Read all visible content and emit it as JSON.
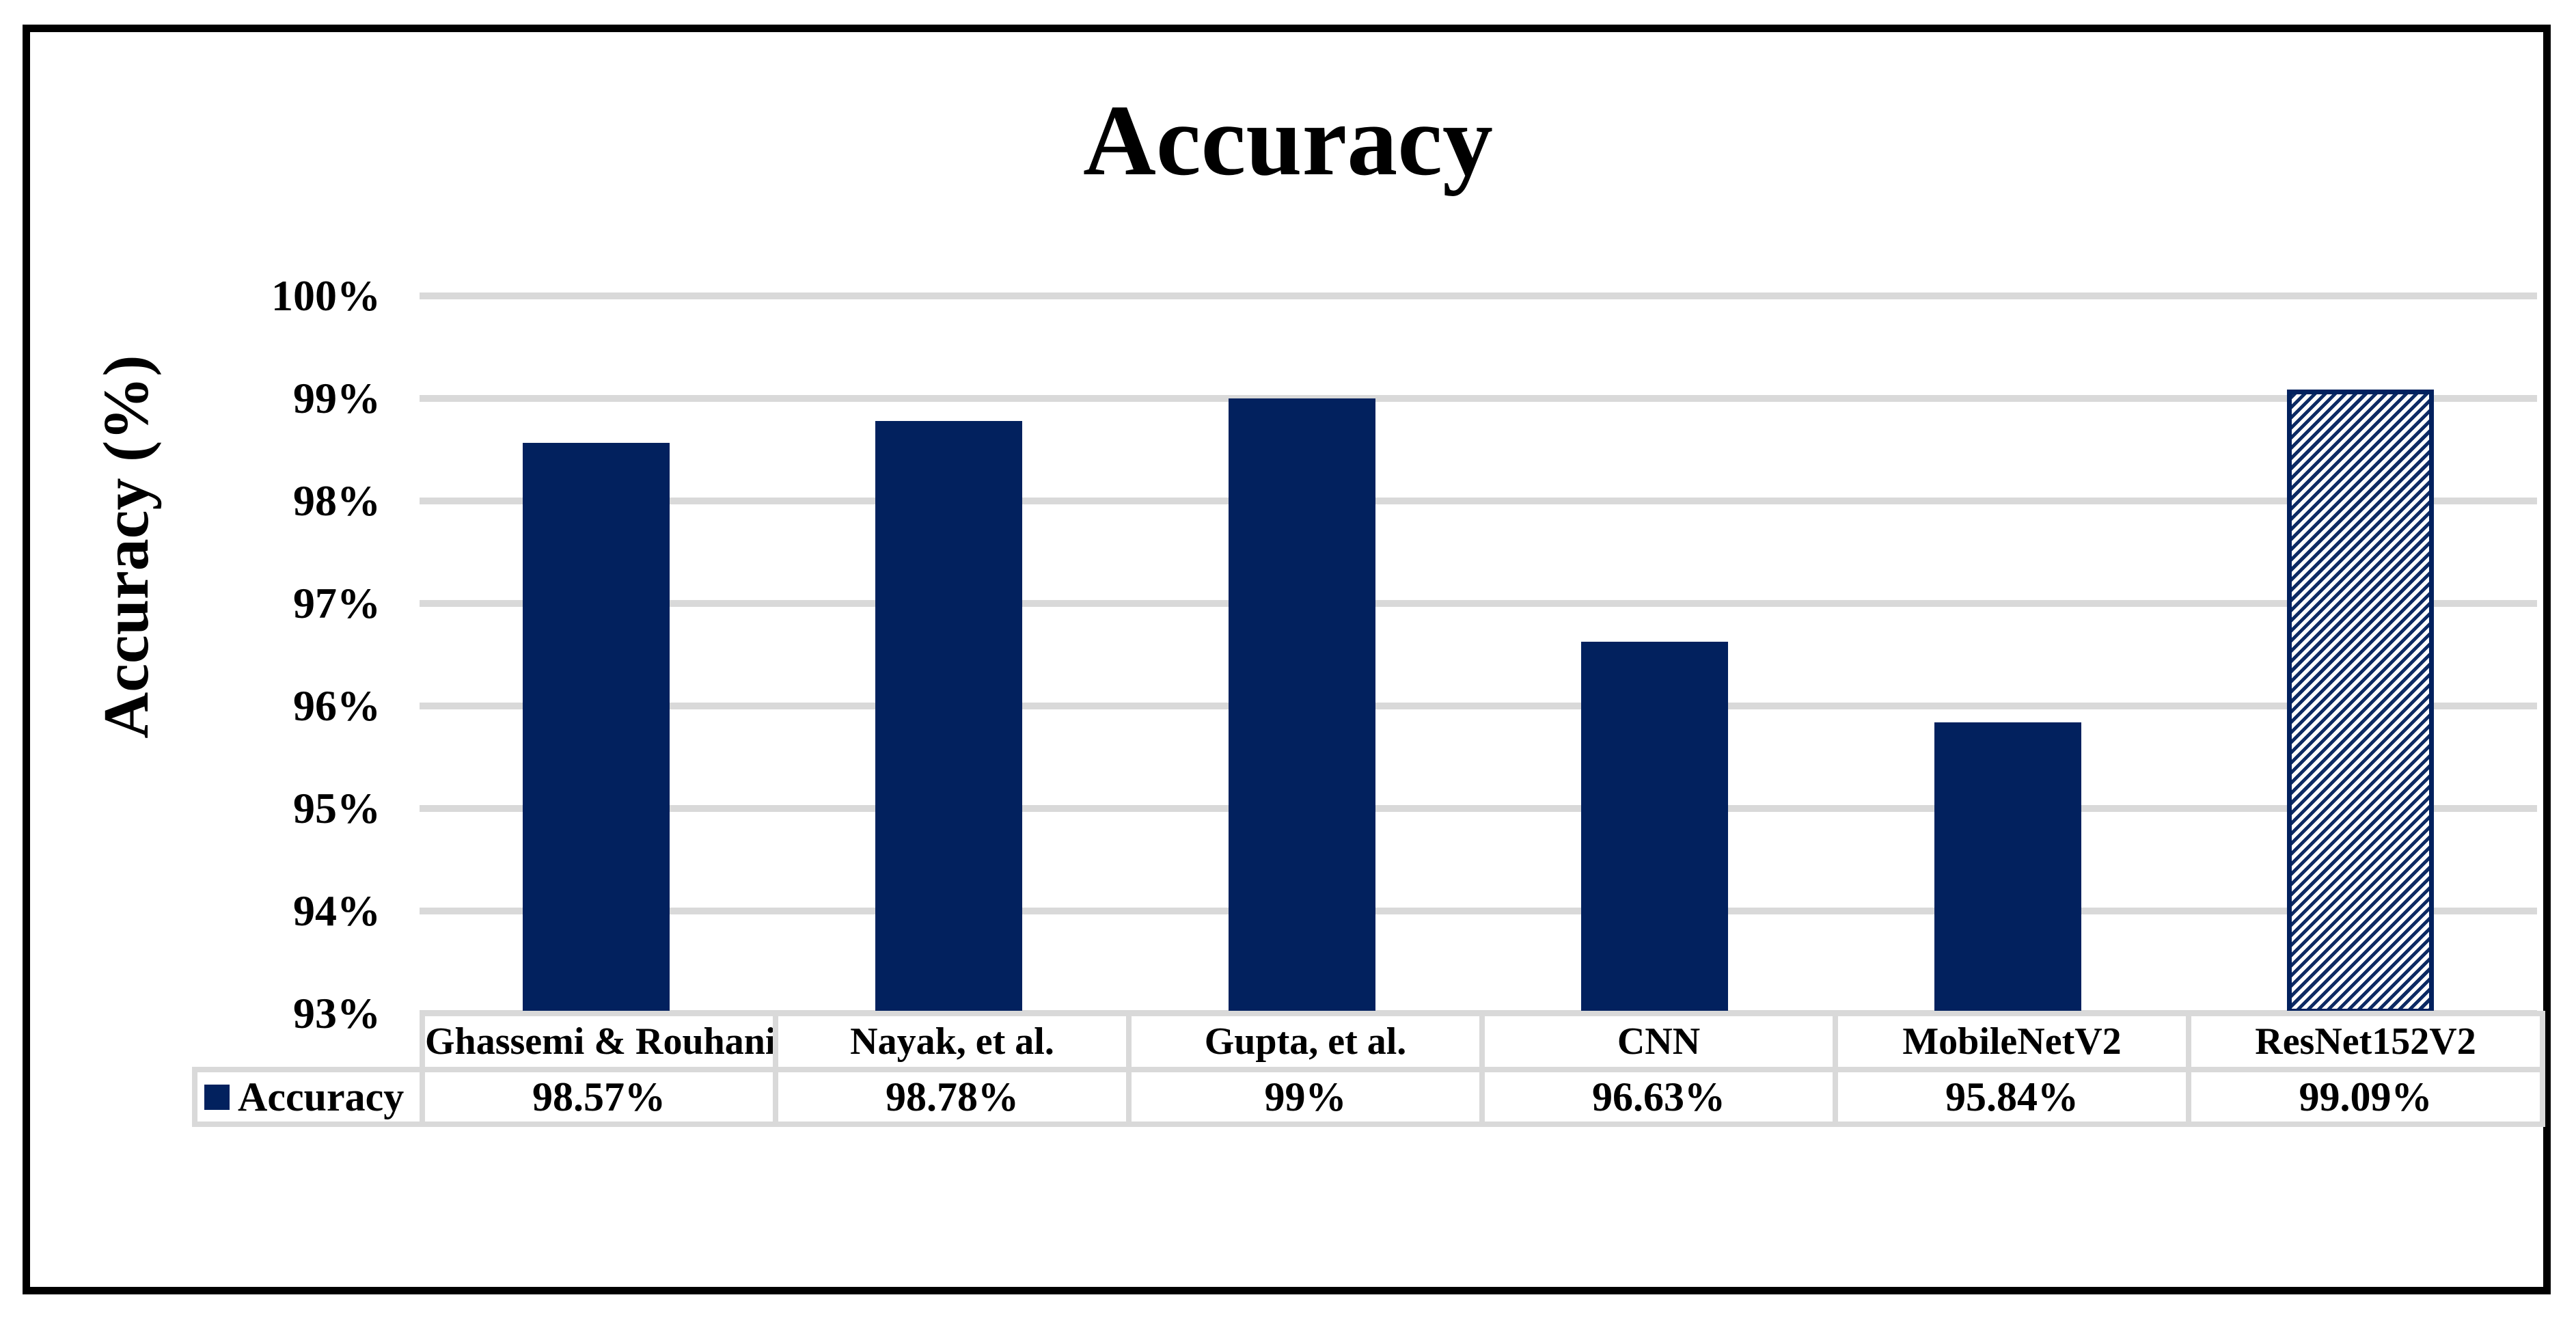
{
  "chart_data": {
    "type": "bar",
    "title": "Accuracy",
    "ylabel": "Accuracy (%)",
    "xlabel": "",
    "categories": [
      "Ghassemi & Rouhani",
      "Nayak, et al.",
      "Gupta, et al.",
      "CNN",
      "MobileNetV2",
      "ResNet152V2"
    ],
    "series": [
      {
        "name": "Accuracy",
        "values": [
          98.57,
          98.78,
          99,
          96.63,
          95.84,
          99.09
        ]
      }
    ],
    "value_labels": [
      "98.57%",
      "98.78%",
      "99%",
      "96.63%",
      "95.84%",
      "99.09%"
    ],
    "ylim": [
      93,
      100
    ],
    "ytick_step": 1,
    "ytick_labels": [
      "100%",
      "99%",
      "98%",
      "97%",
      "96%",
      "95%",
      "94%",
      "93%"
    ],
    "grid": true,
    "legend_position": "data-table-left",
    "hatched_indices": [
      5
    ],
    "data_table_shown": true
  },
  "legend": {
    "label": "Accuracy"
  },
  "colors": {
    "bar": "#02215E",
    "hatch_stripe": "#0D2A63",
    "hatch_background": "#FFFFFF",
    "gridline": "#D9D9D9",
    "table_border": "#D9D9D9",
    "frame_border": "#000000",
    "text": "#000000"
  }
}
